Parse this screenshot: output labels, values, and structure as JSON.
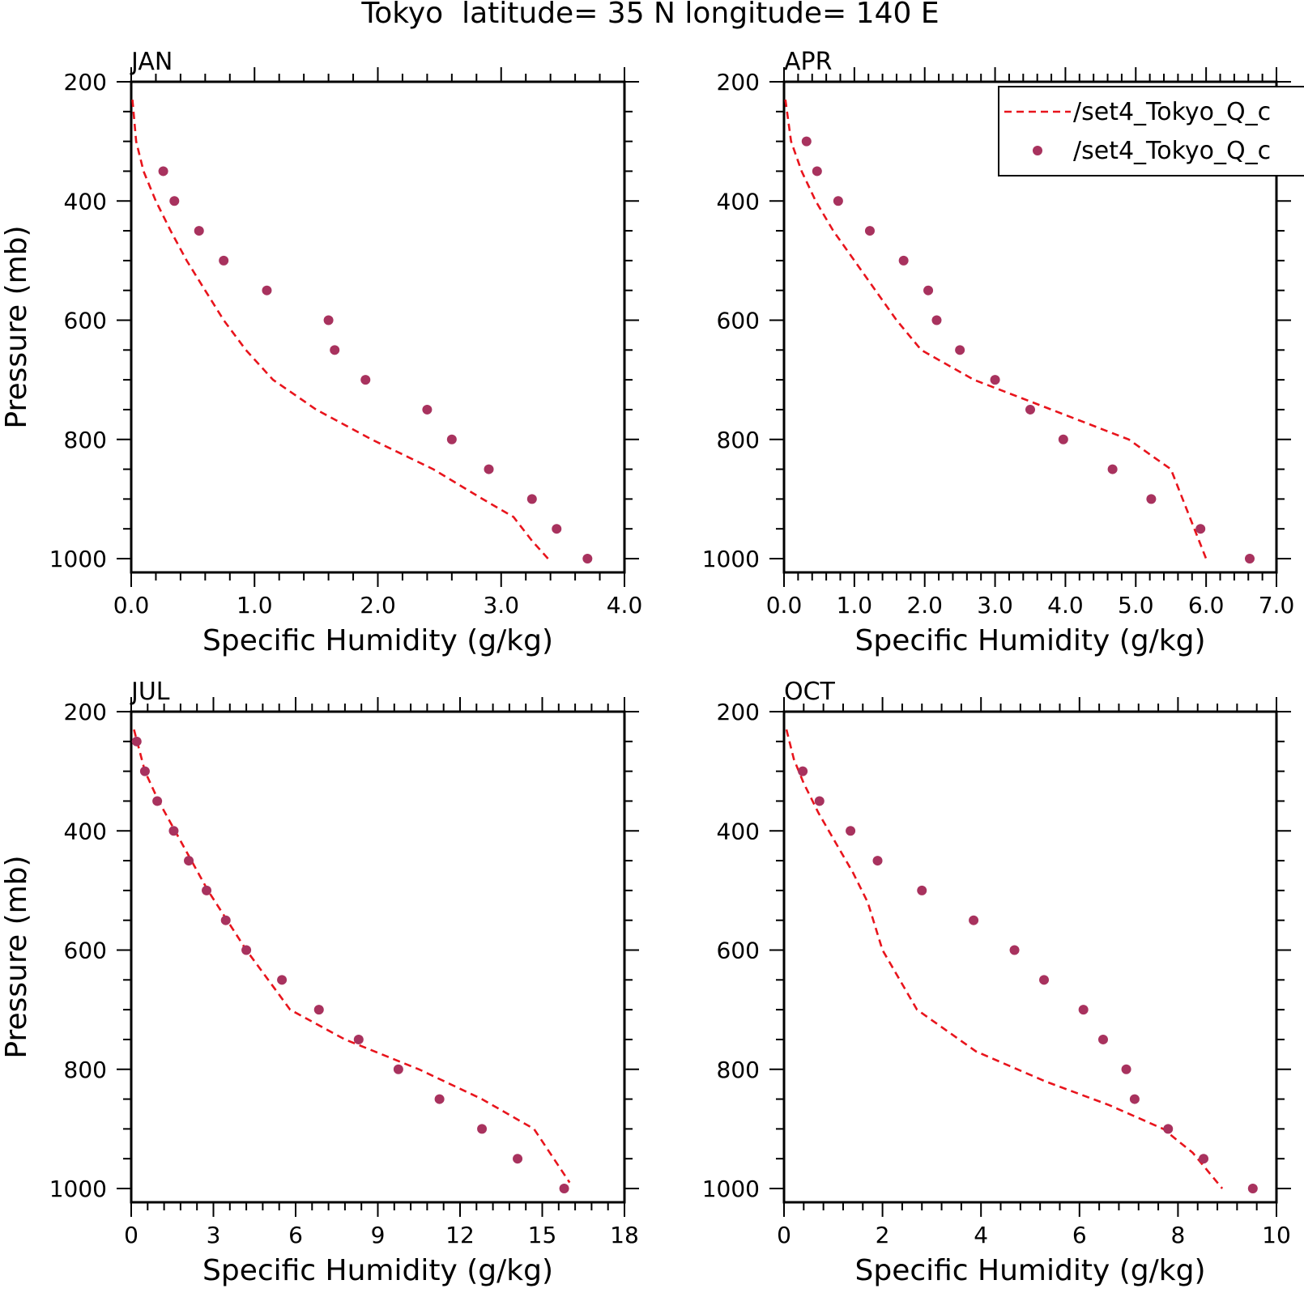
{
  "figure": {
    "title": "Tokyo  latitude= 35 N longitude= 140 E"
  },
  "legend": {
    "entries": [
      {
        "label": "/set4_Tokyo_Q_c",
        "style": "dashed-line",
        "color": "#e8141c"
      },
      {
        "label": "/set4_Tokyo_Q_c",
        "style": "dot",
        "color": "#a8325e"
      }
    ]
  },
  "colors": {
    "model": "#e8141c",
    "obs": "#a8325e",
    "axis": "#000000"
  },
  "chart_data": [
    {
      "type": "line",
      "panel_label": "JAN",
      "xlabel": "Specific Humidity (g/kg)",
      "ylabel": "Pressure (mb)",
      "xlim": [
        0,
        4
      ],
      "ylim": [
        200,
        1000
      ],
      "y_inverted": true,
      "xticks": [
        0,
        1,
        2,
        3,
        4
      ],
      "xtick_labels": [
        "0.0",
        "1.0",
        "2.0",
        "3.0",
        "4.0"
      ],
      "yticks": [
        200,
        400,
        600,
        800,
        1000
      ],
      "ytick_labels": [
        "200",
        "400",
        "600",
        "800",
        "1000"
      ],
      "series": [
        {
          "style": "dashed-line",
          "x": [
            0.01,
            0.04,
            0.1,
            0.2,
            0.32,
            0.45,
            0.6,
            0.75,
            0.93,
            1.15,
            1.5,
            1.95,
            2.45,
            2.85,
            3.1,
            3.25,
            3.38
          ],
          "y": [
            230,
            300,
            350,
            400,
            450,
            500,
            550,
            600,
            650,
            700,
            750,
            800,
            850,
            900,
            930,
            970,
            1000
          ]
        },
        {
          "style": "dot",
          "x": [
            0.26,
            0.35,
            0.55,
            0.75,
            1.1,
            1.6,
            1.65,
            1.9,
            2.4,
            2.6,
            2.9,
            3.25,
            3.45,
            3.7
          ],
          "y": [
            350,
            400,
            450,
            500,
            550,
            600,
            650,
            700,
            750,
            800,
            850,
            900,
            950,
            1000
          ]
        }
      ]
    },
    {
      "type": "line",
      "panel_label": "APR",
      "xlabel": "Specific Humidity (g/kg)",
      "ylabel": "",
      "xlim": [
        0,
        7
      ],
      "ylim": [
        200,
        1000
      ],
      "y_inverted": true,
      "xticks": [
        0,
        1,
        2,
        3,
        4,
        5,
        6,
        7
      ],
      "xtick_labels": [
        "0.0",
        "1.0",
        "2.0",
        "3.0",
        "4.0",
        "5.0",
        "6.0",
        "7.0"
      ],
      "yticks": [
        200,
        400,
        600,
        800,
        1000
      ],
      "ytick_labels": [
        "200",
        "400",
        "600",
        "800",
        "1000"
      ],
      "series": [
        {
          "style": "dashed-line",
          "x": [
            0.02,
            0.1,
            0.25,
            0.45,
            0.7,
            1.0,
            1.3,
            1.6,
            1.95,
            2.7,
            3.8,
            4.9,
            5.5,
            6.0
          ],
          "y": [
            230,
            300,
            350,
            400,
            450,
            500,
            550,
            600,
            650,
            700,
            750,
            800,
            850,
            1000
          ]
        },
        {
          "style": "dot",
          "x": [
            0.32,
            0.47,
            0.77,
            1.22,
            1.7,
            2.05,
            2.17,
            2.5,
            3.0,
            3.5,
            3.97,
            4.67,
            5.22,
            5.92,
            6.62
          ],
          "y": [
            300,
            350,
            400,
            450,
            500,
            550,
            600,
            650,
            700,
            750,
            800,
            850,
            900,
            950,
            1000
          ]
        }
      ]
    },
    {
      "type": "line",
      "panel_label": "JUL",
      "xlabel": "Specific Humidity (g/kg)",
      "ylabel": "Pressure (mb)",
      "xlim": [
        0,
        18
      ],
      "ylim": [
        200,
        1000
      ],
      "y_inverted": true,
      "xticks": [
        0,
        3,
        6,
        9,
        12,
        15,
        18
      ],
      "xtick_labels": [
        "0",
        "3",
        "6",
        "9",
        "12",
        "15",
        "18"
      ],
      "yticks": [
        200,
        400,
        600,
        800,
        1000
      ],
      "ytick_labels": [
        "200",
        "400",
        "600",
        "800",
        "1000"
      ],
      "series": [
        {
          "style": "dashed-line",
          "x": [
            0.1,
            0.5,
            1.0,
            1.6,
            2.2,
            2.8,
            3.5,
            4.2,
            5.0,
            5.8,
            7.8,
            10.5,
            12.8,
            14.7,
            16.0
          ],
          "y": [
            230,
            300,
            350,
            400,
            450,
            500,
            550,
            600,
            650,
            700,
            750,
            800,
            850,
            900,
            990
          ]
        },
        {
          "style": "dot",
          "x": [
            0.2,
            0.5,
            0.95,
            1.55,
            2.1,
            2.75,
            3.45,
            4.2,
            5.5,
            6.85,
            8.3,
            9.75,
            11.25,
            12.8,
            14.1,
            15.8
          ],
          "y": [
            250,
            300,
            350,
            400,
            450,
            500,
            550,
            600,
            650,
            700,
            750,
            800,
            850,
            900,
            950,
            1000
          ]
        }
      ]
    },
    {
      "type": "line",
      "panel_label": "OCT",
      "xlabel": "Specific Humidity (g/kg)",
      "ylabel": "",
      "xlim": [
        0,
        10
      ],
      "ylim": [
        200,
        1000
      ],
      "y_inverted": true,
      "xticks": [
        0,
        2,
        4,
        6,
        8,
        10
      ],
      "xtick_labels": [
        "0",
        "2",
        "4",
        "6",
        "8",
        "10"
      ],
      "yticks": [
        200,
        400,
        600,
        800,
        1000
      ],
      "ytick_labels": [
        "200",
        "400",
        "600",
        "800",
        "1000"
      ],
      "series": [
        {
          "style": "dashed-line",
          "x": [
            0.05,
            0.2,
            0.4,
            0.7,
            1.05,
            1.4,
            1.7,
            2.0,
            2.7,
            3.9,
            5.3,
            6.6,
            7.7,
            8.3,
            8.9
          ],
          "y": [
            230,
            280,
            320,
            370,
            420,
            470,
            520,
            600,
            700,
            770,
            820,
            860,
            900,
            940,
            1000
          ]
        },
        {
          "style": "dot",
          "x": [
            0.38,
            0.72,
            1.35,
            1.9,
            2.8,
            3.85,
            4.68,
            5.28,
            6.08,
            6.48,
            6.95,
            7.12,
            7.8,
            8.52,
            9.52
          ],
          "y": [
            300,
            350,
            400,
            450,
            500,
            550,
            600,
            650,
            700,
            750,
            800,
            850,
            900,
            950,
            1000
          ]
        }
      ]
    }
  ]
}
